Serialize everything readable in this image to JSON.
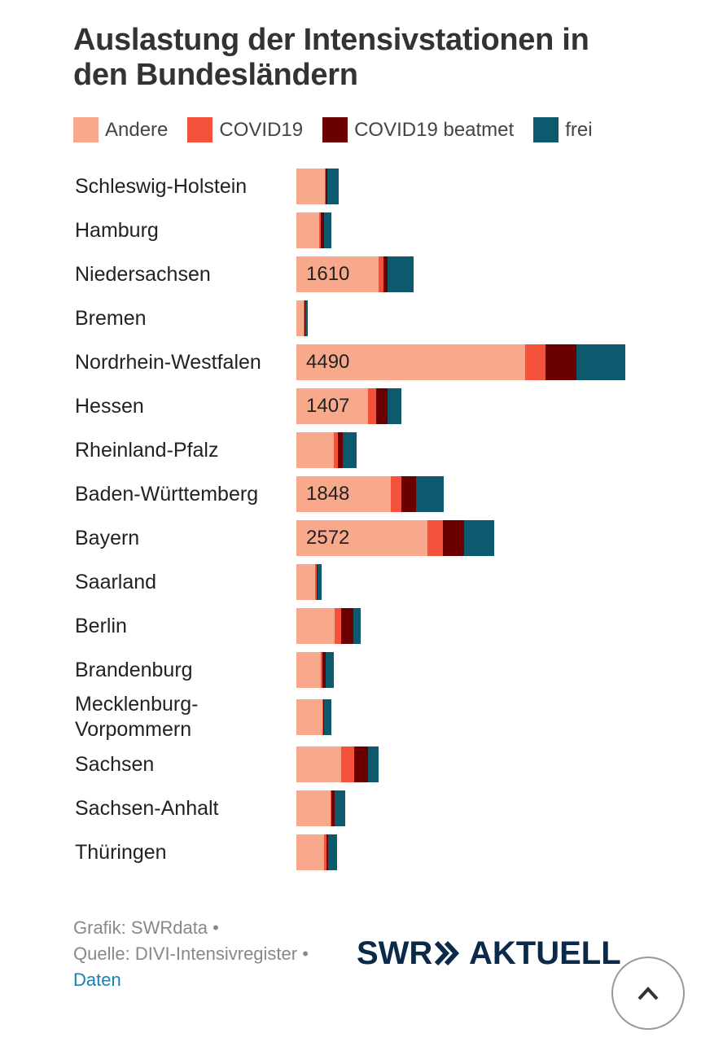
{
  "chart_data": {
    "type": "stacked-bar-horizontal",
    "title": "Auslastung der Intensivstationen in den Bundesländern",
    "categories": [
      "Schleswig-Holstein",
      "Hamburg",
      "Niedersachsen",
      "Bremen",
      "Nordrhein-Westfalen",
      "Hessen",
      "Rheinland-Pfalz",
      "Baden-Württemberg",
      "Bayern",
      "Saarland",
      "Berlin",
      "Brandenburg",
      "Mecklenburg-Vorpommern",
      "Sachsen",
      "Sachsen-Anhalt",
      "Thüringen"
    ],
    "series": [
      {
        "name": "Andere",
        "color": "#f9a98b",
        "values": [
          560,
          450,
          1610,
          150,
          4490,
          1407,
          740,
          1848,
          2572,
          370,
          750,
          480,
          510,
          880,
          670,
          540
        ],
        "value_labels": [
          null,
          null,
          "1610",
          null,
          "4490",
          "1407",
          null,
          "1848",
          "2572",
          null,
          null,
          null,
          null,
          null,
          null,
          null
        ]
      },
      {
        "name": "COVID19",
        "color": "#f4513a",
        "values": [
          20,
          30,
          100,
          15,
          400,
          160,
          80,
          220,
          300,
          30,
          130,
          30,
          15,
          260,
          20,
          50
        ]
      },
      {
        "name": "COVID19 beatmet",
        "color": "#6b0000",
        "values": [
          30,
          60,
          80,
          15,
          610,
          220,
          90,
          290,
          430,
          20,
          240,
          60,
          15,
          260,
          60,
          30
        ]
      },
      {
        "name": "frei",
        "color": "#0d5a6e",
        "values": [
          220,
          140,
          510,
          50,
          960,
          270,
          270,
          530,
          590,
          80,
          140,
          160,
          140,
          220,
          210,
          180
        ]
      }
    ],
    "xlim": [
      0,
      6480
    ]
  },
  "footer": {
    "credit": "Grafik: SWRdata •",
    "source": "Quelle: DIVI-Intensivregister •",
    "link": "Daten"
  },
  "logo": {
    "left": "SWR",
    "right": "AKTUELL"
  }
}
